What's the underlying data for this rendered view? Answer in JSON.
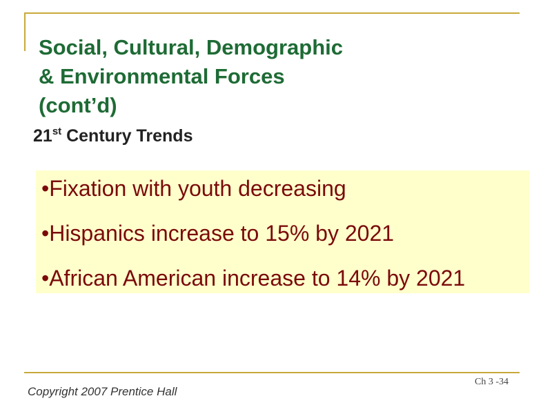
{
  "slide": {
    "title_lines": [
      "Social, Cultural, Demographic",
      "& Environmental Forces",
      "(cont’d)"
    ],
    "subtitle": {
      "number": "21",
      "superscript": "st",
      "rest": " Century Trends"
    },
    "bullets": [
      "•Fixation with youth decreasing",
      "•Hispanics increase to 15% by 2021",
      "•African American increase to 14% by 2021"
    ]
  },
  "footer": {
    "copyright": "Copyright 2007 Prentice Hall",
    "page": "Ch 3 -34"
  },
  "colors": {
    "title": "#1e6b35",
    "bullet_text": "#7a0a0a",
    "bullet_box": "#ffffcc",
    "rules": "#c8a93a"
  }
}
